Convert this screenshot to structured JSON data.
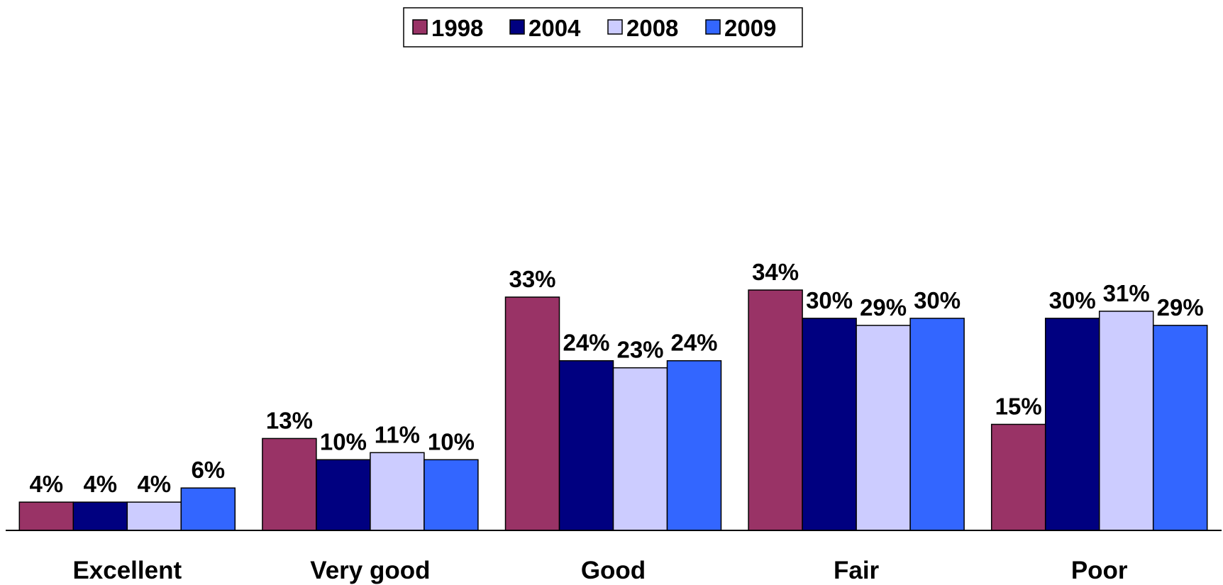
{
  "chart_data": {
    "type": "bar",
    "categories": [
      "Excellent",
      "Very good",
      "Good",
      "Fair",
      "Poor"
    ],
    "series": [
      {
        "name": "1998",
        "color": "#993366",
        "values": [
          4,
          13,
          33,
          34,
          15
        ],
        "value_labels": [
          "4%",
          "13%",
          "33%",
          "34%",
          "15%"
        ]
      },
      {
        "name": "2004",
        "color": "#000080",
        "values": [
          4,
          10,
          24,
          30,
          30
        ],
        "value_labels": [
          "4%",
          "10%",
          "24%",
          "30%",
          "30%"
        ]
      },
      {
        "name": "2008",
        "color": "#ccccff",
        "values": [
          4,
          11,
          23,
          29,
          31
        ],
        "value_labels": [
          "4%",
          "11%",
          "23%",
          "29%",
          "31%"
        ]
      },
      {
        "name": "2009",
        "color": "#3366ff",
        "values": [
          6,
          10,
          24,
          30,
          29
        ],
        "value_labels": [
          "6%",
          "10%",
          "24%",
          "30%",
          "29%"
        ]
      }
    ],
    "legend": "top"
  }
}
